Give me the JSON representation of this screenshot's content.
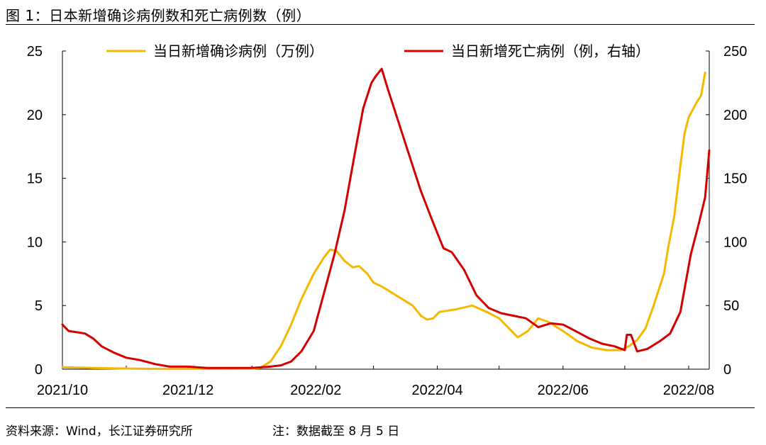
{
  "figure": {
    "title": "图 1：日本新增确诊病例数和死亡病例数（例）",
    "source": "资料来源：Wind，长江证券研究所",
    "note": "注：数据截至 8 月 5 日"
  },
  "chart_data": {
    "type": "line",
    "xlabel": "",
    "ylabel": "",
    "x_ticks": [
      "2021/10",
      "2021/12",
      "2022/02",
      "2022/04",
      "2022/06",
      "2022/08"
    ],
    "ylim_left": [
      0,
      25
    ],
    "yticks_left": [
      "0",
      "5",
      "10",
      "15",
      "20",
      "25"
    ],
    "ylim_right": [
      0,
      250
    ],
    "yticks_right": [
      "0",
      "50",
      "100",
      "150",
      "200",
      "250"
    ],
    "grid": false,
    "legend_position": "top",
    "series": [
      {
        "name": "当日新增确诊病例（万例）",
        "axis": "left",
        "color": "#F5B800",
        "points": [
          [
            "2021-10-01",
            0.15
          ],
          [
            "2021-10-15",
            0.1
          ],
          [
            "2021-11-01",
            0.05
          ],
          [
            "2021-11-15",
            0.02
          ],
          [
            "2021-12-01",
            0.02
          ],
          [
            "2021-12-15",
            0.03
          ],
          [
            "2022-01-01",
            0.05
          ],
          [
            "2022-01-05",
            0.1
          ],
          [
            "2022-01-10",
            0.6
          ],
          [
            "2022-01-15",
            1.8
          ],
          [
            "2022-01-20",
            3.5
          ],
          [
            "2022-01-25",
            5.5
          ],
          [
            "2022-01-31",
            7.5
          ],
          [
            "2022-02-05",
            8.8
          ],
          [
            "2022-02-08",
            9.4
          ],
          [
            "2022-02-11",
            9.3
          ],
          [
            "2022-02-15",
            8.5
          ],
          [
            "2022-02-19",
            8.0
          ],
          [
            "2022-02-22",
            8.1
          ],
          [
            "2022-02-26",
            7.5
          ],
          [
            "2022-03-01",
            6.8
          ],
          [
            "2022-03-05",
            6.5
          ],
          [
            "2022-03-10",
            6.0
          ],
          [
            "2022-03-15",
            5.5
          ],
          [
            "2022-03-20",
            5.0
          ],
          [
            "2022-03-24",
            4.2
          ],
          [
            "2022-03-27",
            3.9
          ],
          [
            "2022-03-30",
            4.0
          ],
          [
            "2022-04-02",
            4.5
          ],
          [
            "2022-04-10",
            4.7
          ],
          [
            "2022-04-18",
            5.0
          ],
          [
            "2022-04-25",
            4.5
          ],
          [
            "2022-05-01",
            4.0
          ],
          [
            "2022-05-07",
            3.0
          ],
          [
            "2022-05-10",
            2.5
          ],
          [
            "2022-05-15",
            3.0
          ],
          [
            "2022-05-20",
            4.0
          ],
          [
            "2022-05-25",
            3.7
          ],
          [
            "2022-06-01",
            3.0
          ],
          [
            "2022-06-08",
            2.2
          ],
          [
            "2022-06-15",
            1.7
          ],
          [
            "2022-06-22",
            1.5
          ],
          [
            "2022-06-29",
            1.5
          ],
          [
            "2022-07-03",
            1.8
          ],
          [
            "2022-07-07",
            2.3
          ],
          [
            "2022-07-11",
            3.2
          ],
          [
            "2022-07-15",
            5.0
          ],
          [
            "2022-07-20",
            7.5
          ],
          [
            "2022-07-22",
            9.5
          ],
          [
            "2022-07-25",
            12.0
          ],
          [
            "2022-07-28",
            16.0
          ],
          [
            "2022-07-30",
            18.5
          ],
          [
            "2022-08-01",
            19.8
          ],
          [
            "2022-08-05",
            21.0
          ],
          [
            "2022-08-07",
            21.5
          ],
          [
            "2022-08-09",
            23.3
          ]
        ]
      },
      {
        "name": "当日新增死亡病例（例，右轴）",
        "axis": "right",
        "color": "#D40000",
        "points": [
          [
            "2021-10-01",
            35
          ],
          [
            "2021-10-04",
            30
          ],
          [
            "2021-10-08",
            29
          ],
          [
            "2021-10-12",
            28
          ],
          [
            "2021-10-16",
            24
          ],
          [
            "2021-10-20",
            18
          ],
          [
            "2021-10-26",
            13
          ],
          [
            "2021-11-01",
            9
          ],
          [
            "2021-11-08",
            7
          ],
          [
            "2021-11-15",
            4
          ],
          [
            "2021-11-22",
            2
          ],
          [
            "2021-12-01",
            2
          ],
          [
            "2021-12-10",
            1
          ],
          [
            "2021-12-20",
            1
          ],
          [
            "2022-01-01",
            1
          ],
          [
            "2022-01-10",
            2
          ],
          [
            "2022-01-15",
            3
          ],
          [
            "2022-01-20",
            6
          ],
          [
            "2022-01-25",
            14
          ],
          [
            "2022-01-31",
            30
          ],
          [
            "2022-02-05",
            60
          ],
          [
            "2022-02-10",
            90
          ],
          [
            "2022-02-15",
            125
          ],
          [
            "2022-02-20",
            170
          ],
          [
            "2022-02-24",
            205
          ],
          [
            "2022-02-28",
            225
          ],
          [
            "2022-03-02",
            230
          ],
          [
            "2022-03-05",
            236
          ],
          [
            "2022-03-08",
            220
          ],
          [
            "2022-03-12",
            200
          ],
          [
            "2022-03-18",
            170
          ],
          [
            "2022-03-24",
            140
          ],
          [
            "2022-03-30",
            115
          ],
          [
            "2022-04-04",
            95
          ],
          [
            "2022-04-08",
            92
          ],
          [
            "2022-04-14",
            78
          ],
          [
            "2022-04-20",
            58
          ],
          [
            "2022-04-26",
            48
          ],
          [
            "2022-05-02",
            44
          ],
          [
            "2022-05-08",
            42
          ],
          [
            "2022-05-14",
            40
          ],
          [
            "2022-05-20",
            33
          ],
          [
            "2022-05-26",
            36
          ],
          [
            "2022-06-01",
            35
          ],
          [
            "2022-06-07",
            30
          ],
          [
            "2022-06-14",
            24
          ],
          [
            "2022-06-20",
            20
          ],
          [
            "2022-06-26",
            18
          ],
          [
            "2022-07-01",
            15
          ],
          [
            "2022-07-02",
            27
          ],
          [
            "2022-07-04",
            27
          ],
          [
            "2022-07-07",
            14
          ],
          [
            "2022-07-12",
            16
          ],
          [
            "2022-07-18",
            22
          ],
          [
            "2022-07-23",
            28
          ],
          [
            "2022-07-28",
            45
          ],
          [
            "2022-08-02",
            90
          ],
          [
            "2022-08-06",
            115
          ],
          [
            "2022-08-09",
            135
          ],
          [
            "2022-08-11",
            172
          ]
        ]
      }
    ]
  }
}
